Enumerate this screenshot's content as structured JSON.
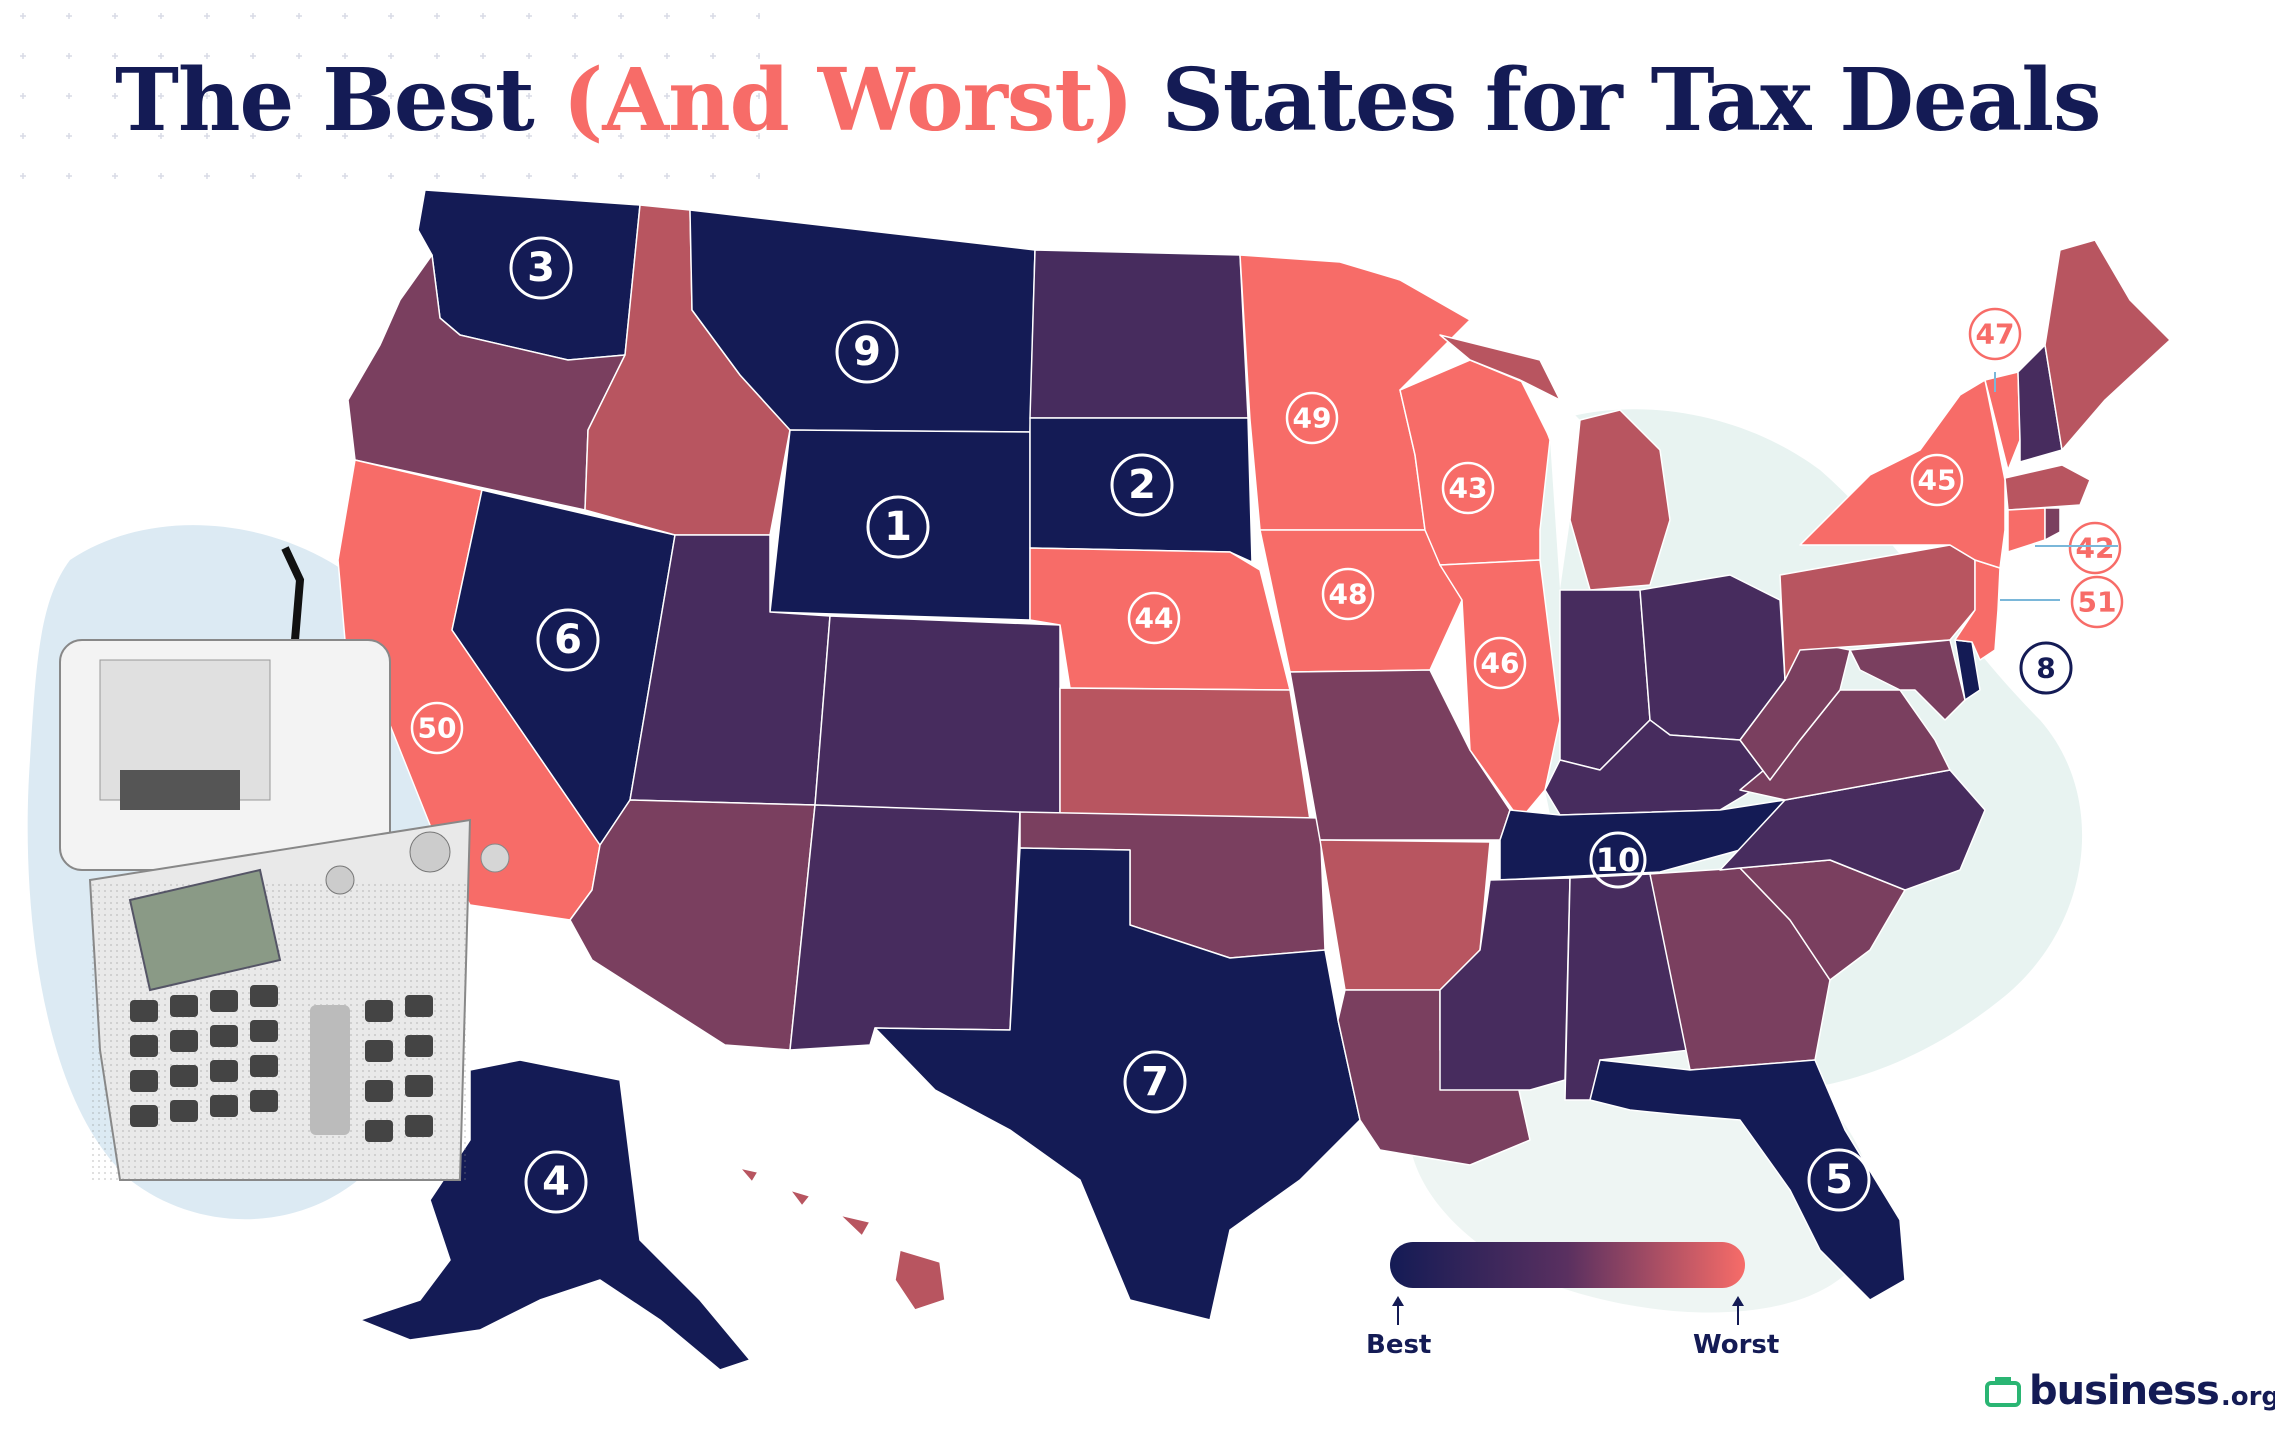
{
  "title": {
    "part1": "The Best ",
    "part2": "(And Worst)",
    "part3": " States for Tax Deals"
  },
  "legend": {
    "best_label": "Best",
    "worst_label": "Worst",
    "gradient": [
      "#141b55",
      "#5a3060",
      "#f76c68"
    ]
  },
  "colors": {
    "best": "#141b55",
    "mid_dark": "#472c5e",
    "mid": "#7a3f5f",
    "mid_light": "#b85560",
    "worst": "#f76c68",
    "background_blob": "#dceaf3"
  },
  "brand": {
    "name": "business",
    "tld": ".org",
    "icon": "briefcase-icon",
    "icon_color": "#2ab573"
  },
  "rankings": [
    {
      "state": "WY",
      "rank": "1"
    },
    {
      "state": "SD",
      "rank": "2"
    },
    {
      "state": "WA",
      "rank": "3"
    },
    {
      "state": "AK",
      "rank": "4"
    },
    {
      "state": "FL",
      "rank": "5"
    },
    {
      "state": "NV",
      "rank": "6"
    },
    {
      "state": "TX",
      "rank": "7"
    },
    {
      "state": "DE",
      "rank": "8"
    },
    {
      "state": "MT",
      "rank": "9"
    },
    {
      "state": "TN",
      "rank": "10"
    },
    {
      "state": "CT",
      "rank": "42"
    },
    {
      "state": "WI",
      "rank": "43"
    },
    {
      "state": "NE",
      "rank": "44"
    },
    {
      "state": "NY",
      "rank": "45"
    },
    {
      "state": "IL",
      "rank": "46"
    },
    {
      "state": "VT",
      "rank": "47"
    },
    {
      "state": "IA",
      "rank": "48"
    },
    {
      "state": "MN",
      "rank": "49"
    },
    {
      "state": "CA",
      "rank": "50"
    },
    {
      "state": "NJ",
      "rank": "51"
    }
  ]
}
